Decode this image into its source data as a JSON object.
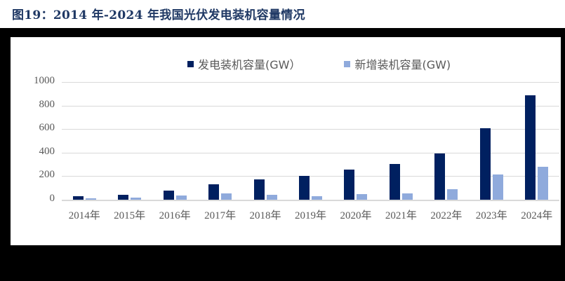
{
  "title": "图19：2014 年-2024 年我国光伏发电装机容量情况",
  "colors": {
    "title": "#1F3864",
    "series_installed": "#002060",
    "series_new": "#8FAADC",
    "grid": "#D9D9D9",
    "axis_text": "#595959"
  },
  "legend": [
    {
      "label": "发电装机容量(GW）",
      "color": "#002060"
    },
    {
      "label": "新增装机容量(GW)",
      "color": "#8FAADC"
    }
  ],
  "chart_data": {
    "type": "bar",
    "title": "2014 年-2024 年我国光伏发电装机容量情况",
    "xlabel": "",
    "ylabel": "",
    "ylim": [
      0,
      1000
    ],
    "yticks": [
      0,
      200,
      400,
      600,
      800,
      1000
    ],
    "grid": true,
    "legend_position": "top",
    "categories": [
      "2014年",
      "2015年",
      "2016年",
      "2017年",
      "2018年",
      "2019年",
      "2020年",
      "2021年",
      "2022年",
      "2023年",
      "2024年"
    ],
    "series": [
      {
        "name": "发电装机容量(GW）",
        "values": [
          28,
          43,
          77,
          130,
          174,
          204,
          253,
          306,
          393,
          609,
          887
        ]
      },
      {
        "name": "新增装机容量(GW)",
        "values": [
          10,
          15,
          34,
          53,
          44,
          30,
          48,
          53,
          87,
          217,
          278
        ]
      }
    ]
  }
}
